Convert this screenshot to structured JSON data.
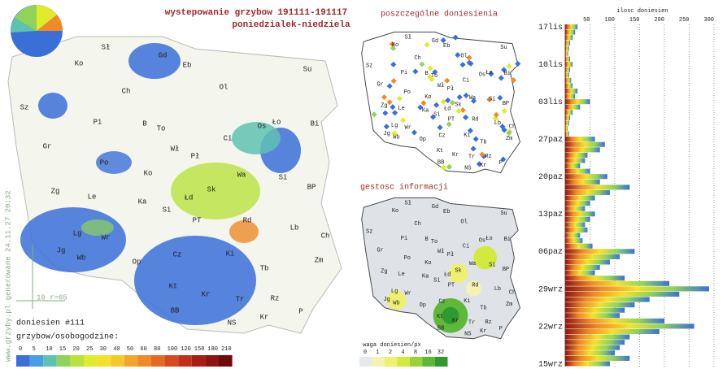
{
  "header": {
    "title": "wystepowanie grzybow 191111-191117",
    "subtitle": "poniedzialek-niedziela",
    "watermark": "www.grzyby.pl generowane 24.11.27 20:32",
    "scale_note": "10 r=65"
  },
  "maps": {
    "points_title": "poszczególne doniesienia",
    "density_title": "gestosc informacji",
    "count": "doniesien #111",
    "regions": [
      "Sł",
      "Gd",
      "Ko",
      "Eb",
      "Su",
      "Ch",
      "Ol",
      "Sz",
      "Pi",
      "B",
      "To",
      "Os",
      "Ło",
      "Bi",
      "Ci",
      "Gr",
      "Wł",
      "Pł",
      "Po",
      "Ko",
      "Wa",
      "Si",
      "Zg",
      "Le",
      "Sk",
      "BP",
      "Ka",
      "Łd",
      "Si",
      "Lb",
      "PT",
      "Rd",
      "Ch",
      "Lg",
      "Wr",
      "Ki",
      "Zm",
      "Jg",
      "Wb",
      "Op",
      "Cz",
      "Tb",
      "Kt",
      "Kr",
      "Tr",
      "Rz",
      "BB",
      "Kr",
      "P",
      "NS"
    ]
  },
  "legend": {
    "title": "grzybow/osobogodzine:",
    "ticks": [
      "0",
      "5",
      "10",
      "15",
      "20",
      "25",
      "30",
      "40",
      "50",
      "60",
      "80",
      "100",
      "120",
      "150",
      "180",
      "210"
    ],
    "colors": [
      "#3a6fd8",
      "#4b9be6",
      "#5ec2b0",
      "#8fd35a",
      "#b9e23c",
      "#e2ea2e",
      "#f4e22a",
      "#f7c82a",
      "#f4a52a",
      "#ef8a26",
      "#e56a22",
      "#d84a1e",
      "#c2301a",
      "#a81e16",
      "#8e1412",
      "#700a0a"
    ],
    "density_title": "waga doniesien/px",
    "density_ticks": [
      "0",
      "1",
      "2",
      "4",
      "8",
      "16",
      "32"
    ],
    "density_colors": [
      "#e6e9ec",
      "#f5f3b0",
      "#eef070",
      "#d2ea3c",
      "#9ad23a",
      "#5fb83a",
      "#2e9a30"
    ]
  },
  "chart_data": {
    "type": "bar",
    "title": "ilosc doniesien",
    "categories": [
      "17lis",
      null,
      null,
      null,
      null,
      null,
      null,
      "10lis",
      null,
      null,
      null,
      null,
      null,
      null,
      "03lis",
      null,
      null,
      null,
      null,
      null,
      null,
      "27paz",
      null,
      null,
      null,
      null,
      null,
      null,
      "20paz",
      null,
      null,
      null,
      null,
      null,
      null,
      "13paz",
      null,
      null,
      null,
      null,
      null,
      null,
      "06paz",
      null,
      null,
      null,
      null,
      null,
      null,
      "29wrz",
      null,
      null,
      null,
      null,
      null,
      null,
      "22wrz",
      null,
      null,
      null,
      null,
      null,
      null,
      "15wrz"
    ],
    "values": [
      25,
      20,
      15,
      10,
      8,
      6,
      10,
      15,
      10,
      8,
      12,
      15,
      25,
      20,
      50,
      30,
      15,
      10,
      8,
      5,
      8,
      60,
      80,
      70,
      45,
      40,
      30,
      50,
      85,
      70,
      130,
      90,
      60,
      50,
      40,
      60,
      50,
      40,
      45,
      30,
      35,
      55,
      140,
      110,
      90,
      70,
      60,
      120,
      210,
      290,
      230,
      170,
      140,
      120,
      110,
      200,
      260,
      190,
      130,
      120,
      110,
      100,
      130,
      90
    ],
    "xlim": [
      0,
      300
    ],
    "xticks": [
      50,
      100,
      150,
      200,
      250,
      300
    ],
    "grid": true
  }
}
